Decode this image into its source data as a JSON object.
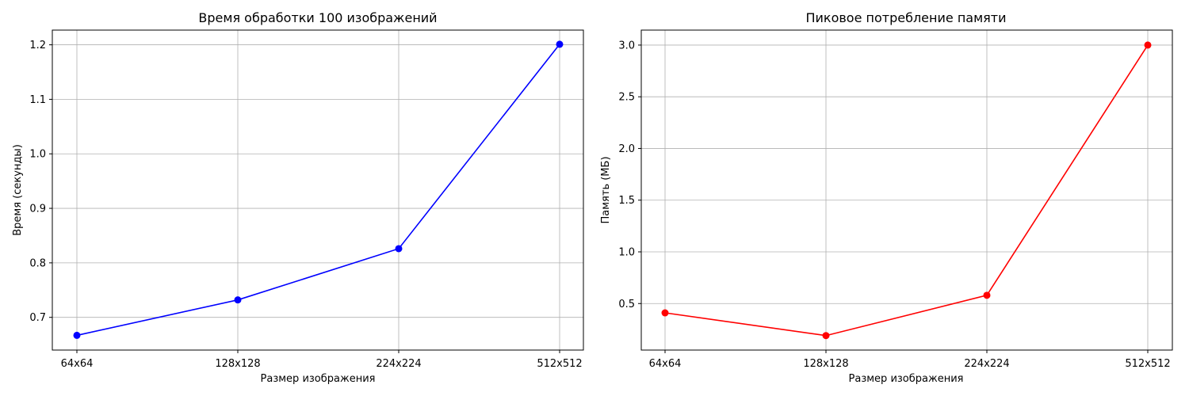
{
  "chart_data": [
    {
      "type": "line",
      "title": "Время обработки 100 изображений",
      "xlabel": "Размер изображения",
      "ylabel": "Время (секунды)",
      "categories": [
        "64x64",
        "128x128",
        "224x224",
        "512x512"
      ],
      "series": [
        {
          "color": "#0000ff",
          "marker": "circle",
          "values": [
            0.667,
            0.732,
            0.826,
            1.201
          ]
        }
      ],
      "ylim": [
        0.64,
        1.227
      ],
      "yticks": [
        0.7,
        0.8,
        0.9,
        1.0,
        1.1,
        1.2
      ],
      "ytick_labels": [
        "0.7",
        "0.8",
        "0.9",
        "1.0",
        "1.1",
        "1.2"
      ],
      "grid": true
    },
    {
      "type": "line",
      "title": "Пиковое потребление памяти",
      "xlabel": "Размер изображения",
      "ylabel": "Память (МБ)",
      "categories": [
        "64x64",
        "128x128",
        "224x224",
        "512x512"
      ],
      "series": [
        {
          "color": "#ff0000",
          "marker": "circle",
          "values": [
            0.41,
            0.19,
            0.58,
            3.0
          ]
        }
      ],
      "ylim": [
        0.05,
        3.145
      ],
      "yticks": [
        0.5,
        1.0,
        1.5,
        2.0,
        2.5,
        3.0
      ],
      "ytick_labels": [
        "0.5",
        "1.0",
        "1.5",
        "2.0",
        "2.5",
        "3.0"
      ],
      "grid": true
    }
  ]
}
